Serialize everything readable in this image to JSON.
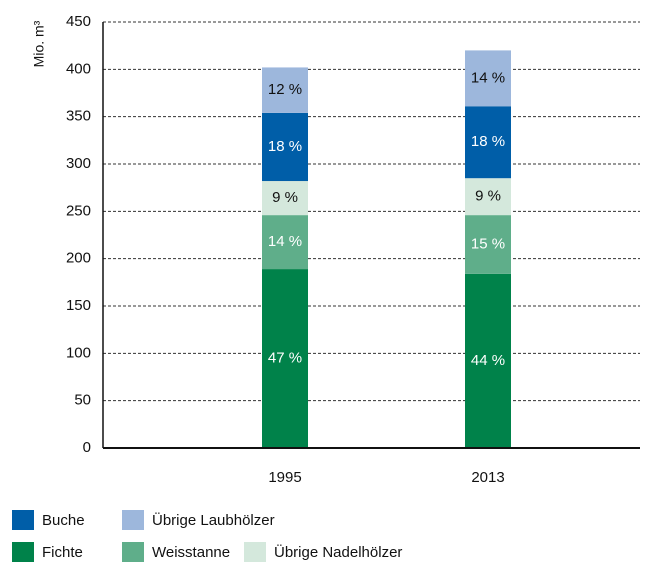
{
  "chart_data": {
    "type": "stacked_bar",
    "y_label": "Mio. m³",
    "categories": [
      "1995",
      "2013"
    ],
    "series": [
      {
        "name": "Fichte",
        "color": "#00824a",
        "values": [
          189,
          184
        ],
        "value_labels": [
          "47 %",
          "44 %"
        ]
      },
      {
        "name": "Weisstanne",
        "color": "#5fae8a",
        "values": [
          57,
          62
        ],
        "value_labels": [
          "14 %",
          "15 %"
        ]
      },
      {
        "name": "Übrige Nadelhölzer",
        "color": "#d4e8dc",
        "values": [
          36,
          39
        ],
        "value_labels": [
          "9 %",
          "9 %"
        ]
      },
      {
        "name": "Buche",
        "color": "#005ea8",
        "values": [
          72,
          76
        ],
        "value_labels": [
          "18 %",
          "18 %"
        ]
      },
      {
        "name": "Übrige Laubhölzer",
        "color": "#9db7dc",
        "values": [
          48,
          59
        ],
        "value_labels": [
          "12 %",
          "14 %"
        ]
      }
    ],
    "ylim": [
      0,
      450
    ],
    "yticks": [
      0,
      50,
      100,
      150,
      200,
      250,
      300,
      350,
      400,
      450
    ],
    "grid": true
  }
}
